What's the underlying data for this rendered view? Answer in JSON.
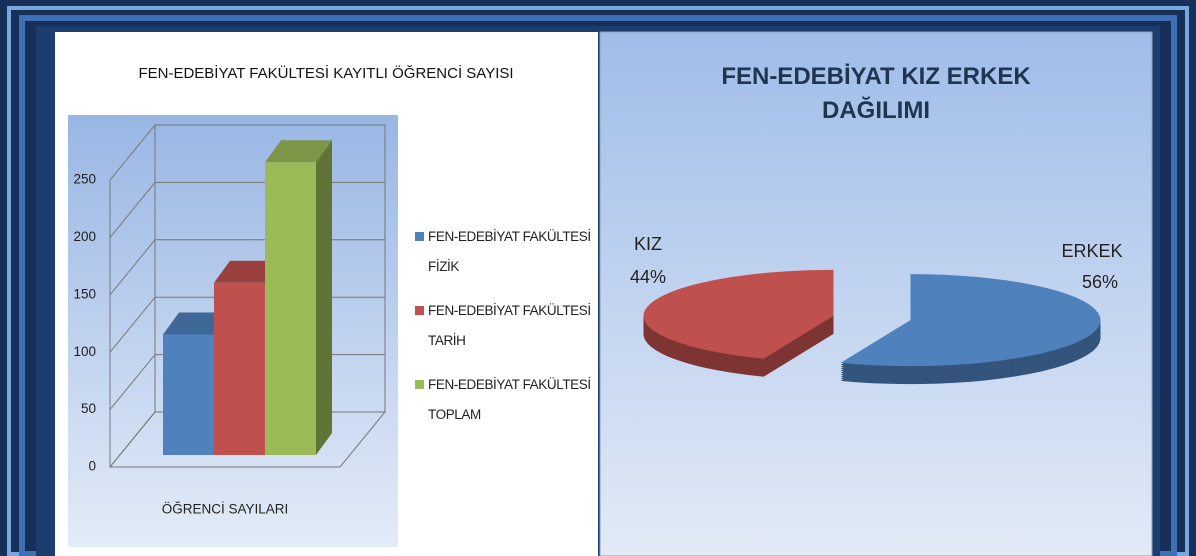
{
  "chart_data": [
    {
      "type": "bar",
      "title": "FEN-EDEBİYAT FAKÜLTESİ KAYITLI ÖĞRENCİ SAYISI",
      "categories": [
        "ÖĞRENCİ SAYILARI"
      ],
      "series": [
        {
          "name": "FEN-EDEBİYAT FAKÜLTESİ FİZİK",
          "color": "#4f81bd",
          "values": [
            105
          ]
        },
        {
          "name": "FEN-EDEBİYAT FAKÜLTESİ TARİH",
          "color": "#c0504d",
          "values": [
            150
          ]
        },
        {
          "name": "FEN-EDEBİYAT FAKÜLTESİ TOPLAM",
          "color": "#9bbb59",
          "values": [
            255
          ]
        }
      ],
      "ylim": [
        0,
        250
      ],
      "yticks": [
        0,
        50,
        100,
        150,
        200,
        250
      ],
      "grid": true,
      "legend": "right"
    },
    {
      "type": "pie",
      "title": "FEN-EDEBİYAT KIZ ERKEK DAĞILIMI",
      "categories": [
        "KIZ",
        "ERKEK"
      ],
      "values": [
        44,
        56
      ],
      "value_labels": [
        "44%",
        "56%"
      ],
      "colors": [
        "#c0504d",
        "#4f81bd"
      ]
    }
  ]
}
